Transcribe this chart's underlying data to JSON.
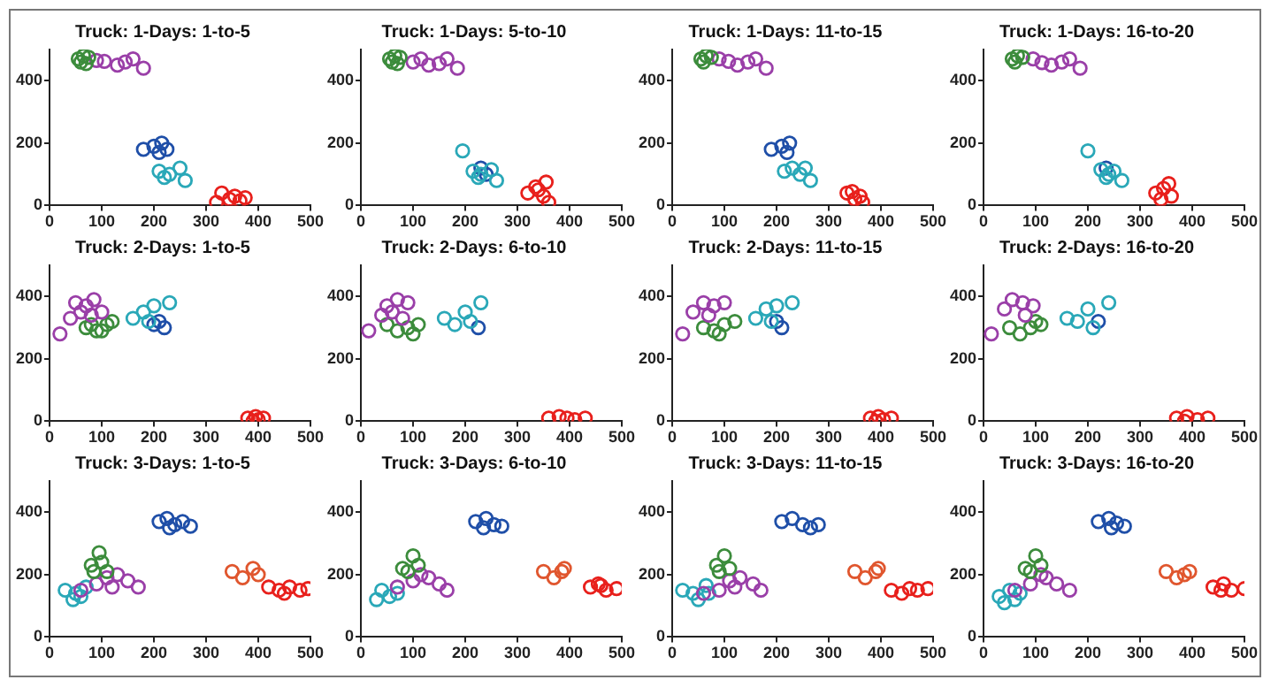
{
  "chart_data": [
    {
      "type": "scatter",
      "title": "Truck: 1-Days: 1-to-5",
      "xlim": [
        0,
        500
      ],
      "ylim": [
        0,
        500
      ],
      "xticks": [
        0,
        100,
        200,
        300,
        400,
        500
      ],
      "yticks": [
        0,
        200,
        400
      ],
      "marker": "circle",
      "grid": false,
      "series": [
        {
          "color": "#3c8c3c",
          "x": [
            55,
            65,
            60,
            75,
            70
          ],
          "values": [
            470,
            480,
            460,
            475,
            455
          ]
        },
        {
          "color": "#9a3fa8",
          "x": [
            105,
            90,
            130,
            145,
            160,
            180
          ],
          "values": [
            462,
            465,
            450,
            460,
            470,
            440
          ]
        },
        {
          "color": "#1f4fa8",
          "x": [
            180,
            200,
            215,
            225,
            210
          ],
          "values": [
            180,
            190,
            200,
            180,
            170
          ]
        },
        {
          "color": "#2aa8b8",
          "x": [
            210,
            230,
            250,
            260,
            220
          ],
          "values": [
            110,
            100,
            120,
            80,
            90
          ]
        },
        {
          "color": "#e8201c",
          "x": [
            330,
            345,
            355,
            365,
            320,
            375
          ],
          "values": [
            40,
            20,
            30,
            15,
            10,
            25
          ]
        }
      ]
    },
    {
      "type": "scatter",
      "title": "Truck: 1-Days: 5-to-10",
      "xlim": [
        0,
        500
      ],
      "ylim": [
        0,
        500
      ],
      "xticks": [
        0,
        100,
        200,
        300,
        400,
        500
      ],
      "yticks": [
        0,
        200,
        400
      ],
      "marker": "circle",
      "grid": false,
      "series": [
        {
          "color": "#3c8c3c",
          "x": [
            55,
            65,
            60,
            75,
            70
          ],
          "values": [
            470,
            480,
            460,
            475,
            455
          ]
        },
        {
          "color": "#9a3fa8",
          "x": [
            115,
            100,
            130,
            150,
            165,
            185
          ],
          "values": [
            470,
            460,
            450,
            455,
            470,
            440
          ]
        },
        {
          "color": "#2aa8b8",
          "x": [
            195,
            215,
            230,
            250,
            260,
            225
          ],
          "values": [
            175,
            110,
            100,
            115,
            80,
            90
          ]
        },
        {
          "color": "#1f4fa8",
          "x": [
            230,
            240
          ],
          "values": [
            120,
            100
          ]
        },
        {
          "color": "#e8201c",
          "x": [
            320,
            340,
            350,
            355,
            360,
            335
          ],
          "values": [
            40,
            50,
            30,
            75,
            10,
            60
          ]
        }
      ]
    },
    {
      "type": "scatter",
      "title": "Truck: 1-Days: 11-to-15",
      "xlim": [
        0,
        500
      ],
      "ylim": [
        0,
        500
      ],
      "xticks": [
        0,
        100,
        200,
        300,
        400,
        500
      ],
      "yticks": [
        0,
        200,
        400
      ],
      "marker": "circle",
      "grid": false,
      "series": [
        {
          "color": "#3c8c3c",
          "x": [
            55,
            65,
            60,
            75
          ],
          "values": [
            470,
            480,
            460,
            475
          ]
        },
        {
          "color": "#9a3fa8",
          "x": [
            108,
            90,
            125,
            145,
            160,
            180
          ],
          "values": [
            462,
            470,
            450,
            460,
            470,
            440
          ]
        },
        {
          "color": "#1f4fa8",
          "x": [
            190,
            210,
            225,
            220
          ],
          "values": [
            180,
            190,
            200,
            170
          ]
        },
        {
          "color": "#2aa8b8",
          "x": [
            215,
            230,
            245,
            255,
            265
          ],
          "values": [
            110,
            120,
            100,
            120,
            80
          ]
        },
        {
          "color": "#e8201c",
          "x": [
            335,
            350,
            365,
            360,
            345
          ],
          "values": [
            40,
            20,
            10,
            30,
            45
          ]
        }
      ]
    },
    {
      "type": "scatter",
      "title": "Truck: 1-Days: 16-to-20",
      "xlim": [
        0,
        500
      ],
      "ylim": [
        0,
        500
      ],
      "xticks": [
        0,
        100,
        200,
        300,
        400,
        500
      ],
      "yticks": [
        0,
        200,
        400
      ],
      "marker": "circle",
      "grid": false,
      "series": [
        {
          "color": "#3c8c3c",
          "x": [
            55,
            65,
            60,
            75
          ],
          "values": [
            470,
            480,
            460,
            475
          ]
        },
        {
          "color": "#9a3fa8",
          "x": [
            112,
            95,
            130,
            150,
            165,
            185
          ],
          "values": [
            458,
            470,
            450,
            460,
            470,
            440
          ]
        },
        {
          "color": "#2aa8b8",
          "x": [
            200,
            225,
            240,
            250,
            265,
            235
          ],
          "values": [
            175,
            115,
            100,
            110,
            80,
            90
          ]
        },
        {
          "color": "#1f4fa8",
          "x": [
            235
          ],
          "values": [
            120
          ]
        },
        {
          "color": "#e8201c",
          "x": [
            330,
            345,
            355,
            360,
            340
          ],
          "values": [
            40,
            55,
            70,
            30,
            20
          ]
        }
      ]
    },
    {
      "type": "scatter",
      "title": "Truck: 2-Days: 1-to-5",
      "xlim": [
        0,
        500
      ],
      "ylim": [
        0,
        500
      ],
      "xticks": [
        0,
        100,
        200,
        300,
        400,
        500
      ],
      "yticks": [
        0,
        200,
        400
      ],
      "marker": "circle",
      "grid": false,
      "series": [
        {
          "color": "#9a3fa8",
          "x": [
            20,
            40,
            50,
            70,
            85,
            100,
            60,
            80
          ],
          "values": [
            280,
            330,
            380,
            370,
            390,
            350,
            350,
            340
          ]
        },
        {
          "color": "#3c8c3c",
          "x": [
            70,
            90,
            110,
            100,
            120,
            80
          ],
          "values": [
            300,
            290,
            310,
            290,
            320,
            310
          ]
        },
        {
          "color": "#2aa8b8",
          "x": [
            160,
            180,
            200,
            230,
            190
          ],
          "values": [
            330,
            350,
            370,
            380,
            320
          ]
        },
        {
          "color": "#1f4fa8",
          "x": [
            200,
            220,
            210
          ],
          "values": [
            310,
            300,
            320
          ]
        },
        {
          "color": "#e8201c",
          "x": [
            380,
            395,
            400,
            410,
            390
          ],
          "values": [
            10,
            15,
            5,
            10,
            0
          ]
        }
      ]
    },
    {
      "type": "scatter",
      "title": "Truck: 2-Days: 6-to-10",
      "xlim": [
        0,
        500
      ],
      "ylim": [
        0,
        500
      ],
      "xticks": [
        0,
        100,
        200,
        300,
        400,
        500
      ],
      "yticks": [
        0,
        200,
        400
      ],
      "marker": "circle",
      "grid": false,
      "series": [
        {
          "color": "#9a3fa8",
          "x": [
            15,
            40,
            50,
            70,
            90,
            60,
            80
          ],
          "values": [
            290,
            340,
            370,
            390,
            380,
            350,
            330
          ]
        },
        {
          "color": "#3c8c3c",
          "x": [
            70,
            90,
            110,
            100,
            50
          ],
          "values": [
            290,
            300,
            310,
            280,
            310
          ]
        },
        {
          "color": "#2aa8b8",
          "x": [
            160,
            180,
            200,
            230,
            210
          ],
          "values": [
            330,
            310,
            350,
            380,
            320
          ]
        },
        {
          "color": "#1f4fa8",
          "x": [
            225
          ],
          "values": [
            300
          ]
        },
        {
          "color": "#e8201c",
          "x": [
            360,
            380,
            395,
            410,
            430
          ],
          "values": [
            10,
            15,
            10,
            5,
            10
          ]
        }
      ]
    },
    {
      "type": "scatter",
      "title": "Truck: 2-Days: 11-to-15",
      "xlim": [
        0,
        500
      ],
      "ylim": [
        0,
        500
      ],
      "xticks": [
        0,
        100,
        200,
        300,
        400,
        500
      ],
      "yticks": [
        0,
        200,
        400
      ],
      "marker": "circle",
      "grid": false,
      "series": [
        {
          "color": "#9a3fa8",
          "x": [
            20,
            40,
            60,
            80,
            100,
            70
          ],
          "values": [
            280,
            350,
            380,
            370,
            380,
            340
          ]
        },
        {
          "color": "#3c8c3c",
          "x": [
            60,
            80,
            100,
            120,
            90
          ],
          "values": [
            300,
            290,
            310,
            320,
            280
          ]
        },
        {
          "color": "#2aa8b8",
          "x": [
            160,
            180,
            200,
            230,
            190
          ],
          "values": [
            330,
            360,
            370,
            380,
            320
          ]
        },
        {
          "color": "#1f4fa8",
          "x": [
            210,
            200
          ],
          "values": [
            300,
            320
          ]
        },
        {
          "color": "#e8201c",
          "x": [
            380,
            395,
            405,
            390,
            420
          ],
          "values": [
            10,
            15,
            5,
            0,
            10
          ]
        }
      ]
    },
    {
      "type": "scatter",
      "title": "Truck: 2-Days: 16-to-20",
      "xlim": [
        0,
        500
      ],
      "ylim": [
        0,
        500
      ],
      "xticks": [
        0,
        100,
        200,
        300,
        400,
        500
      ],
      "yticks": [
        0,
        200,
        400
      ],
      "marker": "circle",
      "grid": false,
      "series": [
        {
          "color": "#9a3fa8",
          "x": [
            15,
            40,
            55,
            75,
            95,
            80
          ],
          "values": [
            280,
            360,
            390,
            380,
            370,
            340
          ]
        },
        {
          "color": "#3c8c3c",
          "x": [
            50,
            70,
            90,
            100,
            110
          ],
          "values": [
            300,
            280,
            300,
            320,
            310
          ]
        },
        {
          "color": "#2aa8b8",
          "x": [
            160,
            180,
            200,
            240,
            210
          ],
          "values": [
            330,
            320,
            360,
            380,
            300
          ]
        },
        {
          "color": "#1f4fa8",
          "x": [
            220
          ],
          "values": [
            320
          ]
        },
        {
          "color": "#e8201c",
          "x": [
            370,
            390,
            410,
            430,
            385
          ],
          "values": [
            10,
            15,
            5,
            10,
            0
          ]
        }
      ]
    },
    {
      "type": "scatter",
      "title": "Truck: 3-Days: 1-to-5",
      "xlim": [
        0,
        500
      ],
      "ylim": [
        0,
        500
      ],
      "xticks": [
        0,
        100,
        200,
        300,
        400,
        500
      ],
      "yticks": [
        0,
        200,
        400
      ],
      "marker": "circle",
      "grid": false,
      "series": [
        {
          "color": "#1f4fa8",
          "x": [
            210,
            225,
            240,
            255,
            270,
            230
          ],
          "values": [
            370,
            380,
            360,
            370,
            355,
            350
          ]
        },
        {
          "color": "#3c8c3c",
          "x": [
            80,
            100,
            95,
            110,
            85
          ],
          "values": [
            230,
            240,
            270,
            210,
            210
          ]
        },
        {
          "color": "#9a3fa8",
          "x": [
            60,
            90,
            110,
            130,
            150,
            170,
            120
          ],
          "values": [
            150,
            170,
            190,
            200,
            180,
            160,
            160
          ]
        },
        {
          "color": "#2aa8b8",
          "x": [
            30,
            50,
            70,
            45,
            60
          ],
          "values": [
            150,
            140,
            160,
            120,
            130
          ]
        },
        {
          "color": "#e0562e",
          "x": [
            350,
            370,
            390,
            400
          ],
          "values": [
            210,
            190,
            220,
            200
          ]
        },
        {
          "color": "#e8201c",
          "x": [
            420,
            440,
            460,
            480,
            495,
            450
          ],
          "values": [
            160,
            150,
            160,
            150,
            155,
            140
          ]
        }
      ]
    },
    {
      "type": "scatter",
      "title": "Truck: 3-Days: 6-to-10",
      "xlim": [
        0,
        500
      ],
      "ylim": [
        0,
        500
      ],
      "xticks": [
        0,
        100,
        200,
        300,
        400,
        500
      ],
      "yticks": [
        0,
        200,
        400
      ],
      "marker": "circle",
      "grid": false,
      "series": [
        {
          "color": "#1f4fa8",
          "x": [
            220,
            240,
            255,
            270,
            235
          ],
          "values": [
            370,
            380,
            360,
            355,
            350
          ]
        },
        {
          "color": "#3c8c3c",
          "x": [
            80,
            100,
            110,
            90
          ],
          "values": [
            220,
            260,
            230,
            210
          ]
        },
        {
          "color": "#9a3fa8",
          "x": [
            70,
            100,
            130,
            150,
            165,
            115
          ],
          "values": [
            160,
            180,
            190,
            170,
            150,
            200
          ]
        },
        {
          "color": "#2aa8b8",
          "x": [
            40,
            55,
            70,
            30
          ],
          "values": [
            150,
            130,
            140,
            120
          ]
        },
        {
          "color": "#e0562e",
          "x": [
            350,
            370,
            385,
            390
          ],
          "values": [
            210,
            190,
            210,
            220
          ]
        },
        {
          "color": "#e8201c",
          "x": [
            440,
            455,
            470,
            490,
            460
          ],
          "values": [
            160,
            170,
            150,
            155,
            165
          ]
        }
      ]
    },
    {
      "type": "scatter",
      "title": "Truck: 3-Days: 11-to-15",
      "xlim": [
        0,
        500
      ],
      "ylim": [
        0,
        500
      ],
      "xticks": [
        0,
        100,
        200,
        300,
        400,
        500
      ],
      "yticks": [
        0,
        200,
        400
      ],
      "marker": "circle",
      "grid": false,
      "series": [
        {
          "color": "#1f4fa8",
          "x": [
            210,
            230,
            250,
            265,
            280
          ],
          "values": [
            370,
            380,
            360,
            350,
            360
          ]
        },
        {
          "color": "#3c8c3c",
          "x": [
            85,
            100,
            110,
            90
          ],
          "values": [
            230,
            260,
            220,
            210
          ]
        },
        {
          "color": "#9a3fa8",
          "x": [
            60,
            90,
            110,
            130,
            155,
            170,
            120
          ],
          "values": [
            140,
            150,
            180,
            190,
            170,
            150,
            160
          ]
        },
        {
          "color": "#2aa8b8",
          "x": [
            20,
            40,
            65,
            50,
            70
          ],
          "values": [
            150,
            140,
            165,
            120,
            140
          ]
        },
        {
          "color": "#e0562e",
          "x": [
            350,
            370,
            390,
            395
          ],
          "values": [
            210,
            190,
            210,
            220
          ]
        },
        {
          "color": "#e8201c",
          "x": [
            420,
            440,
            455,
            470,
            490
          ],
          "values": [
            150,
            140,
            155,
            150,
            155
          ]
        }
      ]
    },
    {
      "type": "scatter",
      "title": "Truck: 3-Days: 16-to-20",
      "xlim": [
        0,
        500
      ],
      "ylim": [
        0,
        500
      ],
      "xticks": [
        0,
        100,
        200,
        300,
        400,
        500
      ],
      "yticks": [
        0,
        200,
        400
      ],
      "marker": "circle",
      "grid": false,
      "series": [
        {
          "color": "#1f4fa8",
          "x": [
            220,
            240,
            255,
            270,
            245
          ],
          "values": [
            370,
            380,
            365,
            355,
            350
          ]
        },
        {
          "color": "#3c8c3c",
          "x": [
            80,
            100,
            110,
            90
          ],
          "values": [
            220,
            260,
            230,
            210
          ]
        },
        {
          "color": "#9a3fa8",
          "x": [
            60,
            90,
            120,
            140,
            165,
            110
          ],
          "values": [
            150,
            170,
            190,
            170,
            150,
            200
          ]
        },
        {
          "color": "#2aa8b8",
          "x": [
            30,
            50,
            70,
            40,
            60
          ],
          "values": [
            130,
            150,
            140,
            110,
            120
          ]
        },
        {
          "color": "#e0562e",
          "x": [
            350,
            370,
            385,
            395
          ],
          "values": [
            210,
            190,
            200,
            210
          ]
        },
        {
          "color": "#e8201c",
          "x": [
            440,
            460,
            475,
            500,
            455
          ],
          "values": [
            160,
            170,
            150,
            155,
            150
          ]
        }
      ]
    }
  ]
}
